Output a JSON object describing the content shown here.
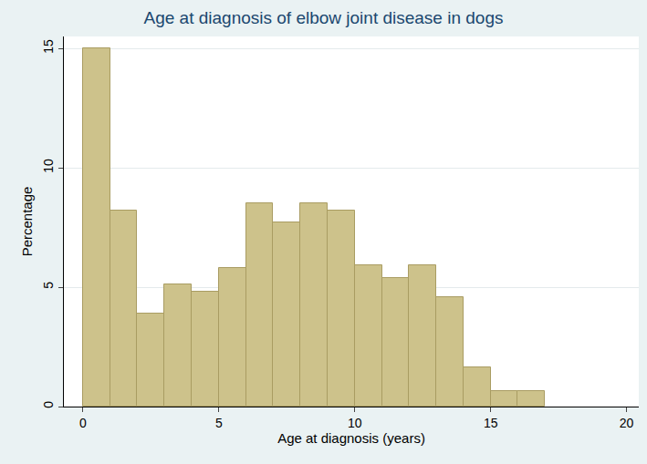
{
  "chart_data": {
    "type": "histogram",
    "title": "Age at diagnosis of elbow joint disease in dogs",
    "x_label": "Age at diagnosis (years)",
    "y_label": "Percentage",
    "bins": [
      0,
      1,
      2,
      3,
      4,
      5,
      6,
      7,
      8,
      9,
      10,
      11,
      12,
      13,
      14,
      15,
      16,
      17
    ],
    "values": [
      15,
      8.2,
      3.9,
      5.1,
      4.8,
      5.8,
      8.5,
      7.7,
      8.5,
      8.2,
      5.9,
      5.4,
      5.9,
      4.6,
      1.65,
      0.65,
      0.65
    ],
    "color": "#cdc28b",
    "xlim": [
      -0.7,
      20.45
    ],
    "ylim": [
      0,
      15.5
    ],
    "xticks": [
      0,
      5,
      10,
      15,
      20
    ],
    "yticks": [
      0,
      5,
      10,
      15
    ],
    "grid": true
  }
}
